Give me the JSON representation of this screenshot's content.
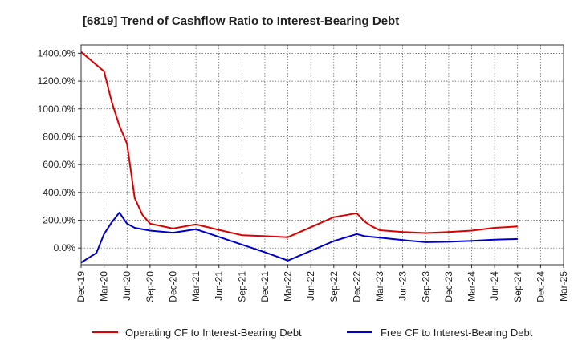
{
  "chart_data": {
    "type": "line",
    "title": "[6819]  Trend of Cashflow Ratio to Interest-Bearing Debt",
    "xlabel": "",
    "ylabel": "",
    "ylim": [
      -120,
      1460
    ],
    "yticks": [
      0,
      200,
      400,
      600,
      800,
      1000,
      1200,
      1400
    ],
    "ytick_labels": [
      "0.0%",
      "200.0%",
      "400.0%",
      "600.0%",
      "800.0%",
      "1000.0%",
      "1200.0%",
      "1400.0%"
    ],
    "xlim": [
      "2019-12",
      "2025-03"
    ],
    "xtick_labels": [
      "Dec-19",
      "Mar-20",
      "Jun-20",
      "Sep-20",
      "Dec-20",
      "Mar-21",
      "Jun-21",
      "Sep-21",
      "Dec-21",
      "Mar-22",
      "Jun-22",
      "Sep-22",
      "Dec-22",
      "Mar-23",
      "Jun-23",
      "Sep-23",
      "Dec-23",
      "Mar-24",
      "Jun-24",
      "Sep-24",
      "Dec-24",
      "Mar-25"
    ],
    "grid": true,
    "legend_position": "bottom",
    "series": [
      {
        "name": "Operating CF to Interest-Bearing Debt",
        "color": "#dd0000",
        "points": [
          [
            "2019-12",
            1410
          ],
          [
            "2020-03",
            1270
          ],
          [
            "2020-04",
            1050
          ],
          [
            "2020-05",
            880
          ],
          [
            "2020-06",
            750
          ],
          [
            "2020-07",
            360
          ],
          [
            "2020-08",
            240
          ],
          [
            "2020-09",
            175
          ],
          [
            "2020-12",
            140
          ],
          [
            "2021-03",
            170
          ],
          [
            "2021-06",
            130
          ],
          [
            "2021-09",
            92
          ],
          [
            "2021-12",
            85
          ],
          [
            "2022-03",
            78
          ],
          [
            "2022-06",
            150
          ],
          [
            "2022-09",
            222
          ],
          [
            "2022-12",
            250
          ],
          [
            "2023-01",
            190
          ],
          [
            "2023-02",
            155
          ],
          [
            "2023-03",
            128
          ],
          [
            "2023-06",
            115
          ],
          [
            "2023-09",
            108
          ],
          [
            "2023-12",
            115
          ],
          [
            "2024-03",
            125
          ],
          [
            "2024-06",
            145
          ],
          [
            "2024-09",
            155
          ]
        ]
      },
      {
        "name": "Free CF to Interest-Bearing Debt",
        "color": "#0000cc",
        "points": [
          [
            "2019-12",
            -105
          ],
          [
            "2020-02",
            -35
          ],
          [
            "2020-03",
            100
          ],
          [
            "2020-04",
            185
          ],
          [
            "2020-05",
            255
          ],
          [
            "2020-06",
            175
          ],
          [
            "2020-07",
            145
          ],
          [
            "2020-09",
            125
          ],
          [
            "2020-12",
            110
          ],
          [
            "2021-03",
            135
          ],
          [
            "2021-06",
            80
          ],
          [
            "2021-09",
            25
          ],
          [
            "2021-12",
            -30
          ],
          [
            "2022-03",
            -90
          ],
          [
            "2022-06",
            -20
          ],
          [
            "2022-09",
            50
          ],
          [
            "2022-12",
            100
          ],
          [
            "2023-01",
            85
          ],
          [
            "2023-03",
            75
          ],
          [
            "2023-06",
            57
          ],
          [
            "2023-09",
            42
          ],
          [
            "2023-12",
            45
          ],
          [
            "2024-03",
            52
          ],
          [
            "2024-06",
            60
          ],
          [
            "2024-09",
            65
          ]
        ]
      }
    ]
  }
}
